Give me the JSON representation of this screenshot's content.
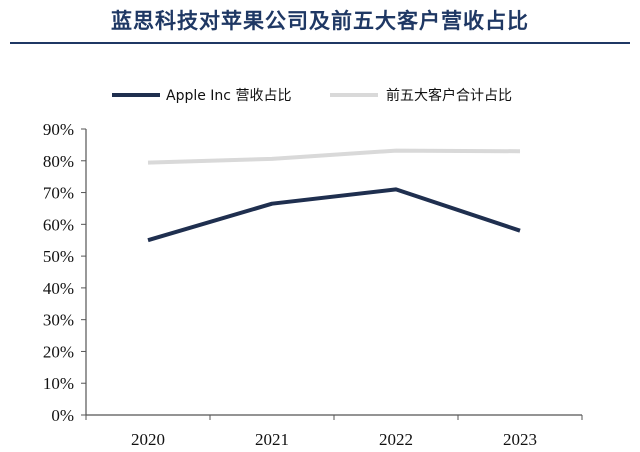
{
  "chart_data": {
    "type": "line",
    "title": "蓝思科技对苹果公司及前五大客户营收占比",
    "xlabel": "",
    "ylabel": "",
    "categories": [
      "2020",
      "2021",
      "2022",
      "2023"
    ],
    "series": [
      {
        "name": "Apple Inc 营收占比",
        "values": [
          55.0,
          66.5,
          71.0,
          58.0
        ]
      },
      {
        "name": "前五大客户合计占比",
        "values": [
          79.4,
          80.6,
          83.2,
          83.0
        ]
      }
    ],
    "ylim": [
      0,
      90
    ],
    "yticks": [
      "0%",
      "10%",
      "20%",
      "30%",
      "40%",
      "50%",
      "60%",
      "70%",
      "80%",
      "90%"
    ],
    "grid": false,
    "legend_position": "top"
  },
  "colors": {
    "title": "#1f3864",
    "apple_series": "#1f2f4f",
    "top5_series": "#d9d9d9",
    "axis": "#555555"
  }
}
